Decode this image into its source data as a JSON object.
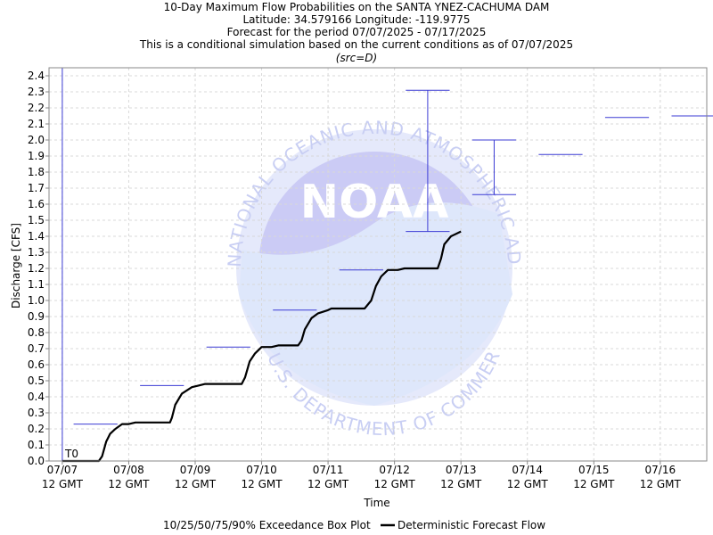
{
  "chart_data": {
    "type": "line",
    "title": "10-Day Maximum Flow Probabilities on the SANTA YNEZ-CACHUMA DAM",
    "subtitle_lines": [
      "Latitude: 34.579166 Longitude: -119.9775",
      "Forecast for the period 07/07/2025 - 07/17/2025",
      "This is a conditional simulation based on the current conditions as of 07/07/2025"
    ],
    "src_note": "(src=D)",
    "xlabel": "Time",
    "ylabel": "Discharge [CFS]",
    "xlim": [
      -0.2,
      9.7
    ],
    "ylim": [
      0,
      2.45
    ],
    "x_tick_days": [
      0,
      1,
      2,
      3,
      4,
      5,
      6,
      7,
      8,
      9
    ],
    "x_tick_dates": [
      "07/07",
      "07/08",
      "07/09",
      "07/10",
      "07/11",
      "07/12",
      "07/13",
      "07/14",
      "07/15",
      "07/16"
    ],
    "x_tick_time": "12 GMT",
    "y_ticks": [
      0.0,
      0.1,
      0.2,
      0.3,
      0.4,
      0.5,
      0.6,
      0.7,
      0.8,
      0.9,
      1.0,
      1.1,
      1.2,
      1.3,
      1.4,
      1.5,
      1.6,
      1.7,
      1.8,
      1.9,
      2.0,
      2.1,
      2.2,
      2.3,
      2.4
    ],
    "t0_label": "T0",
    "t0_day": 0,
    "box_plots": [
      {
        "start": 0.17,
        "end": 0.83,
        "p50": 0.23
      },
      {
        "start": 1.17,
        "end": 1.83,
        "p50": 0.47
      },
      {
        "start": 2.17,
        "end": 2.83,
        "p50": 0.71
      },
      {
        "start": 3.17,
        "end": 3.83,
        "p50": 0.94
      },
      {
        "start": 4.17,
        "end": 4.83,
        "p50": 1.19
      },
      {
        "start": 5.17,
        "end": 5.83,
        "p50": 1.43,
        "p90": 2.31
      },
      {
        "start": 6.17,
        "end": 6.83,
        "p50": 1.66,
        "p90": 2.0
      },
      {
        "start": 7.17,
        "end": 7.83,
        "p50": 1.91
      },
      {
        "start": 8.17,
        "end": 8.83,
        "p50": 2.14
      },
      {
        "start": 9.17,
        "end": 9.83,
        "p50": 2.15
      }
    ],
    "deterministic_flow": {
      "x": [
        0.0,
        0.04,
        0.3,
        0.55,
        0.6,
        0.66,
        0.72,
        0.8,
        0.9,
        1.0,
        1.1,
        1.15,
        1.3,
        1.5,
        1.62,
        1.65,
        1.7,
        1.8,
        1.95,
        2.05,
        2.15,
        2.25,
        2.7,
        2.75,
        2.82,
        2.9,
        3.0,
        3.15,
        3.25,
        3.35,
        3.45,
        3.5,
        3.55,
        3.6,
        3.65,
        3.75,
        3.85,
        4.0,
        4.05,
        4.15,
        4.55,
        4.65,
        4.72,
        4.8,
        4.9,
        5.05,
        5.15,
        5.2,
        5.25,
        5.65,
        5.7,
        5.75,
        5.85,
        6.0
      ],
      "y": [
        0.0,
        0.0,
        0.0,
        0.0,
        0.03,
        0.12,
        0.17,
        0.2,
        0.23,
        0.23,
        0.24,
        0.24,
        0.24,
        0.24,
        0.24,
        0.27,
        0.35,
        0.42,
        0.46,
        0.47,
        0.48,
        0.48,
        0.48,
        0.52,
        0.62,
        0.67,
        0.71,
        0.71,
        0.72,
        0.72,
        0.72,
        0.72,
        0.72,
        0.75,
        0.82,
        0.89,
        0.92,
        0.94,
        0.95,
        0.95,
        0.95,
        1.0,
        1.09,
        1.15,
        1.19,
        1.19,
        1.2,
        1.2,
        1.2,
        1.2,
        1.26,
        1.35,
        1.4,
        1.43
      ]
    },
    "legend": [
      "10/25/50/75/90% Exceedance Box Plot",
      "Deterministic Forecast Flow"
    ],
    "legend_placement": "bottom",
    "grid": true,
    "colors": {
      "box": "#3b3bd4",
      "flow": "#000000",
      "grid": "#d8d8d8"
    },
    "watermark": {
      "logo": "NOAA",
      "ring_text": "NATIONAL OCEANIC AND ATMOSPHERIC ADMINISTRATION",
      "bottom_text": "U.S. DEPARTMENT OF COMMERCE"
    }
  }
}
